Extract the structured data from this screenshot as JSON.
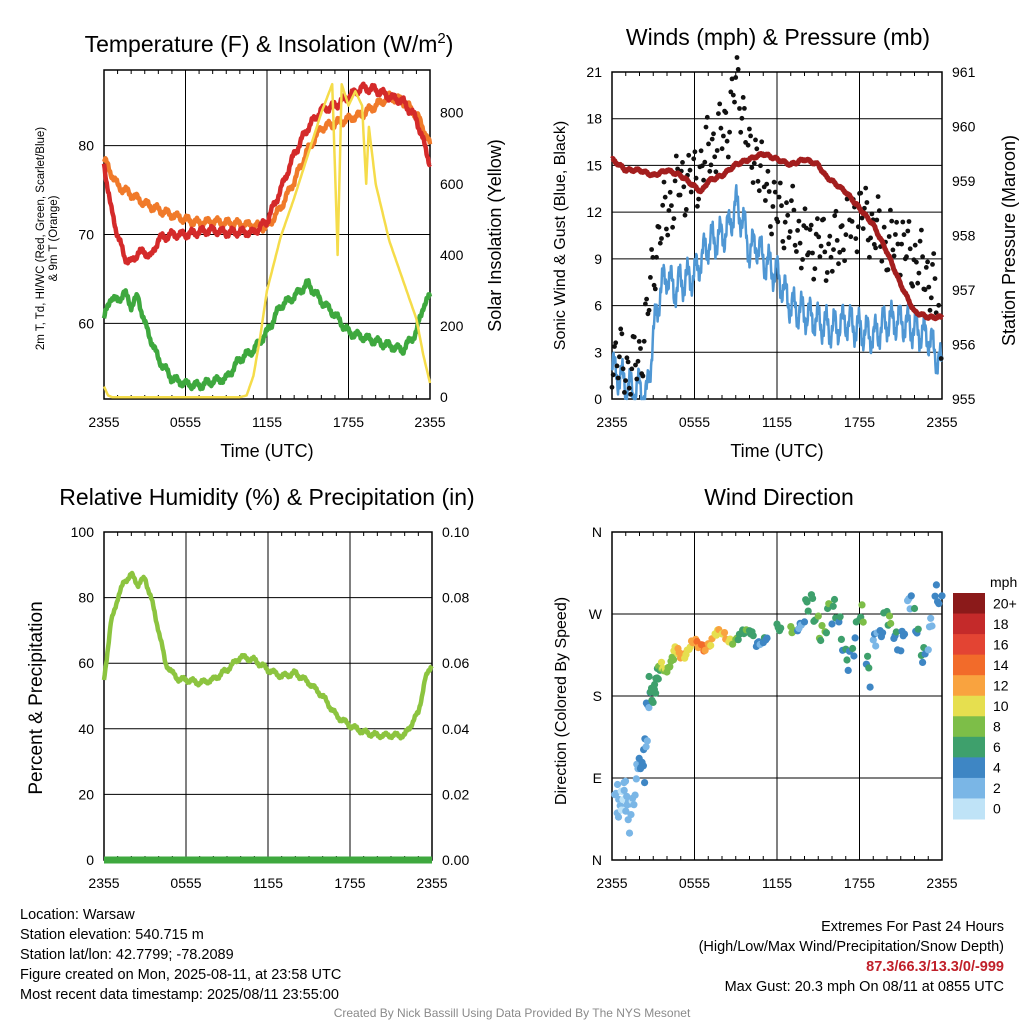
{
  "chart_data": [
    {
      "type": "line",
      "title": "Temperature (F) & Insolation (W/m²)",
      "xlabel": "Time (UTC)",
      "ylabel_left_lines": [
        "2m T, Td, HI/WC (Red, Green, Scarlet/Blue)",
        "& 9m T (Orange)"
      ],
      "ylabel_right": "Solar Insolation (Yellow)",
      "x_ticks": [
        "2355",
        "0555",
        "1155",
        "1755",
        "2355"
      ],
      "x_range_hours": [
        0,
        24
      ],
      "ylim_left": [
        51.5,
        88.5
      ],
      "yticks_left": [
        60,
        70,
        80
      ],
      "ylim_right": [
        -5,
        920
      ],
      "yticks_right": [
        0,
        200,
        400,
        600,
        800
      ],
      "series": [
        {
          "color": "#f07a2a",
          "axis": "left",
          "x": [
            0,
            0.5,
            1,
            2,
            3,
            4,
            5,
            6,
            7,
            8,
            9,
            10,
            11,
            12,
            13,
            14,
            15,
            16,
            17,
            18,
            19,
            20,
            21,
            22,
            23,
            23.5,
            24
          ],
          "y": [
            78.5,
            77,
            75.5,
            74.5,
            73.5,
            72.8,
            72.2,
            71.7,
            71.3,
            71.5,
            71.3,
            71.2,
            71,
            70.8,
            73,
            76,
            79.5,
            82,
            82.5,
            83,
            83.5,
            84.5,
            85.5,
            85,
            83.5,
            82,
            80
          ]
        },
        {
          "color": "#d42a2a",
          "axis": "left",
          "x": [
            0,
            0.5,
            1,
            1.5,
            2,
            2.5,
            3,
            3.5,
            4,
            5,
            6,
            7,
            8,
            9,
            10,
            11,
            12,
            13,
            14,
            15,
            16,
            17,
            18,
            19,
            20,
            21,
            22,
            23,
            23.5,
            24
          ],
          "y": [
            78,
            73,
            70,
            67.5,
            66.8,
            68,
            68,
            67.5,
            69.5,
            70,
            70,
            70.3,
            70.5,
            70.2,
            70.3,
            70.2,
            71.5,
            75,
            79,
            82,
            84,
            84.5,
            85.5,
            86.5,
            86.3,
            85.5,
            85,
            83,
            80.5,
            78
          ]
        },
        {
          "color": "#3ea83e",
          "axis": "left",
          "x": [
            0,
            0.5,
            1,
            1.5,
            2,
            2.5,
            3,
            3.5,
            4,
            5,
            6,
            7,
            8,
            9,
            10,
            11,
            12,
            13,
            14,
            15,
            16,
            17,
            18,
            19,
            20,
            21,
            22,
            23,
            23.5,
            24
          ],
          "y": [
            60.5,
            63,
            62.5,
            63.5,
            62,
            63,
            60,
            58,
            56,
            53.8,
            53.2,
            53,
            53.5,
            53.8,
            56,
            57,
            59,
            62,
            63,
            64.5,
            62.5,
            61,
            59,
            58.5,
            58,
            57.5,
            57,
            59,
            62,
            63
          ]
        },
        {
          "color": "#f5dc4a",
          "axis": "right",
          "x": [
            0,
            0.3,
            0.6,
            1,
            2,
            4,
            6,
            8,
            10,
            10.5,
            11,
            11.5,
            12,
            13,
            14,
            15,
            16,
            16.8,
            17,
            17.2,
            17.5,
            18,
            18.5,
            19,
            19.3,
            19.5,
            20,
            21,
            22,
            23,
            23.5,
            24
          ],
          "y": [
            30,
            5,
            0,
            0,
            0,
            0,
            0,
            0,
            0,
            5,
            60,
            170,
            300,
            450,
            560,
            680,
            800,
            880,
            650,
            400,
            880,
            820,
            860,
            820,
            600,
            760,
            600,
            440,
            330,
            220,
            120,
            40
          ]
        }
      ]
    },
    {
      "type": "line",
      "title": "Winds (mph) & Pressure (mb)",
      "xlabel": "Time (UTC)",
      "ylabel_left": "Sonic Wind & Gust (Blue, Black)",
      "ylabel_right": "Station Pressure (Maroon)",
      "x_ticks": [
        "2355",
        "0555",
        "1155",
        "1755",
        "2355"
      ],
      "x_range_hours": [
        0,
        24
      ],
      "ylim_left": [
        0,
        21
      ],
      "yticks_left": [
        0,
        3,
        6,
        9,
        12,
        15,
        18,
        21
      ],
      "ylim_right": [
        955,
        961
      ],
      "yticks_right": [
        955,
        956,
        957,
        958,
        959,
        960,
        961
      ],
      "series": [
        {
          "color": "#4f97d4",
          "axis": "left",
          "kind": "line",
          "x": [
            0,
            0.5,
            1,
            1.5,
            2,
            2.5,
            3,
            3.5,
            4,
            4.5,
            5,
            6,
            7,
            8,
            8.5,
            9,
            9.5,
            10,
            10.5,
            11,
            12,
            13,
            14,
            15,
            16,
            17,
            18,
            19,
            20,
            21,
            22,
            23,
            23.5,
            24
          ],
          "y": [
            2,
            1.5,
            1,
            0.5,
            0.8,
            0,
            4,
            7,
            8,
            7,
            7.5,
            8,
            10,
            10.5,
            11,
            12.5,
            11.5,
            9.5,
            10,
            9,
            8,
            6,
            5.5,
            5,
            4.5,
            5,
            4.5,
            4,
            5,
            5,
            4.5,
            4,
            3,
            2
          ]
        },
        {
          "color": "#111111",
          "axis": "left",
          "kind": "scatter",
          "x": [
            0,
            0.5,
            1,
            1.5,
            2,
            2.5,
            3,
            3.5,
            4,
            4.5,
            5,
            6,
            7,
            8,
            8.5,
            9,
            9.5,
            10,
            10.5,
            11,
            12,
            13,
            14,
            15,
            16,
            17,
            18,
            19,
            20,
            21,
            22,
            23,
            23.5,
            24
          ],
          "y": [
            3,
            2.5,
            2,
            2,
            2.5,
            5,
            8.5,
            11,
            12,
            13,
            14,
            14,
            16,
            17,
            18,
            20.3,
            19,
            15,
            16,
            14,
            12,
            11.5,
            10,
            10,
            9.5,
            11,
            12,
            11,
            10,
            10,
            9,
            8,
            7,
            3
          ]
        },
        {
          "color": "#a31e1e",
          "axis": "right",
          "kind": "line",
          "x": [
            0,
            1,
            2,
            3,
            4,
            5,
            6,
            6.5,
            7,
            8,
            9,
            10,
            11,
            12,
            13,
            14,
            15,
            15.5,
            16,
            17,
            18,
            19,
            20,
            21,
            22,
            23,
            23.5,
            24
          ],
          "y": [
            959.4,
            959.2,
            959.2,
            959.1,
            959.2,
            959.1,
            958.9,
            958.8,
            959.0,
            959.1,
            959.3,
            959.4,
            959.5,
            959.4,
            959.3,
            959.4,
            959.3,
            959.1,
            959.0,
            958.8,
            958.5,
            958.2,
            957.7,
            957.1,
            956.6,
            956.5,
            956.5,
            956.5
          ]
        }
      ]
    },
    {
      "type": "line",
      "title": "Relative Humidity (%) & Precipitation (in)",
      "ylabel_left": "Percent & Precipitation",
      "x_ticks": [
        "2355",
        "0555",
        "1155",
        "1755",
        "2355"
      ],
      "x_range_hours": [
        0,
        24
      ],
      "ylim_left": [
        0,
        100
      ],
      "yticks_left": [
        0,
        20,
        40,
        60,
        80,
        100
      ],
      "ylim_right": [
        0,
        0.1
      ],
      "yticks_right": [
        "0.00",
        "0.02",
        "0.04",
        "0.06",
        "0.08",
        "0.10"
      ],
      "series": [
        {
          "color": "#8cc43f",
          "axis": "left",
          "x": [
            0,
            0.5,
            1,
            1.5,
            2,
            2.5,
            3,
            3.5,
            4,
            4.5,
            5,
            5.5,
            6,
            7,
            8,
            9,
            10,
            11,
            12,
            13,
            14,
            15,
            16,
            17,
            18,
            19,
            20,
            21,
            22,
            23,
            23.5,
            24
          ],
          "y": [
            55,
            72,
            80,
            85,
            87,
            84,
            86,
            79,
            70,
            60,
            57,
            55,
            55,
            54,
            55,
            58,
            62,
            61,
            58,
            56,
            57,
            54,
            50,
            44,
            41,
            39,
            38,
            38,
            38,
            45,
            55,
            60
          ]
        },
        {
          "color": "#3ea83e",
          "axis": "right",
          "x": [
            0,
            24
          ],
          "y": [
            0,
            0
          ]
        }
      ]
    },
    {
      "type": "scatter",
      "title": "Wind Direction",
      "ylabel_left": "Direction (Colored By Speed)",
      "x_ticks": [
        "2355",
        "0555",
        "1155",
        "1755",
        "2355"
      ],
      "x_range_hours": [
        0,
        24
      ],
      "y_ticks": [
        "N",
        "E",
        "S",
        "W",
        "N"
      ],
      "ylim_degrees": [
        0,
        360
      ],
      "x": [
        0.2,
        0.4,
        0.6,
        0.8,
        1,
        1.2,
        1.5,
        1.8,
        2.1,
        2.3,
        2.5,
        2.7,
        2.9,
        3.1,
        3.3,
        3.6,
        3.9,
        4.2,
        4.5,
        4.8,
        5.2,
        5.6,
        6,
        6.5,
        7,
        7.5,
        8,
        8.5,
        9,
        9.5,
        10,
        10.5,
        11,
        12,
        13,
        13.5,
        14,
        14.5,
        15,
        15.5,
        16,
        16.5,
        17,
        17.5,
        18,
        18.5,
        19,
        19.5,
        20,
        20.5,
        21,
        21.5,
        22,
        22.5,
        23,
        23.5,
        24
      ],
      "y": [
        55,
        85,
        70,
        60,
        50,
        75,
        65,
        90,
        110,
        140,
        160,
        180,
        190,
        200,
        205,
        210,
        215,
        218,
        225,
        228,
        230,
        233,
        235,
        237,
        240,
        245,
        246,
        245,
        244,
        245,
        250,
        243,
        240,
        250,
        255,
        260,
        262,
        265,
        268,
        270,
        255,
        250,
        240,
        235,
        250,
        220,
        260,
        240,
        250,
        260,
        255,
        265,
        250,
        245,
        255,
        270,
        270
      ],
      "speeds": [
        1,
        1,
        2,
        2,
        1,
        2,
        3,
        2,
        3,
        4,
        4,
        5,
        6,
        7,
        7,
        8,
        9,
        9,
        10,
        11,
        11,
        12,
        12,
        13,
        12,
        11,
        10,
        9,
        8,
        6,
        5,
        4,
        6,
        5,
        7,
        4,
        6,
        5,
        7,
        8,
        6,
        4,
        5,
        6,
        7,
        4,
        3,
        5,
        6,
        4,
        5,
        3,
        4,
        5,
        3,
        4,
        2
      ],
      "colorbar": {
        "title": "mph",
        "labels": [
          "20+",
          "18",
          "16",
          "14",
          "12",
          "10",
          "8",
          "6",
          "4",
          "2",
          "0"
        ],
        "colors": [
          "#8b1a1a",
          "#c42a2a",
          "#e34433",
          "#f26b2a",
          "#f9a33f",
          "#e6df4f",
          "#7dbe48",
          "#3ea06c",
          "#3e86c4",
          "#7ab6e6",
          "#bfe3f7"
        ]
      }
    }
  ],
  "footer": {
    "location": "Location: Warsaw",
    "elevation": "Station elevation: 540.715 m",
    "latlon": "Station lat/lon: 42.7799; -78.2089",
    "created": "Figure created on Mon, 2025-08-11, at 23:58 UTC",
    "recent": "Most recent data timestamp: 2025/08/11 23:55:00",
    "extremes_title": "Extremes For Past 24 Hours",
    "extremes_legend": "(High/Low/Max Wind/Precipitation/Snow Depth)",
    "extremes_values": "87.3/66.3/13.3/0/-999",
    "max_gust": "Max Gust: 20.3 mph On 08/11 at 0855 UTC",
    "credit": "Created By Nick Bassill Using Data Provided By The NYS Mesonet"
  }
}
